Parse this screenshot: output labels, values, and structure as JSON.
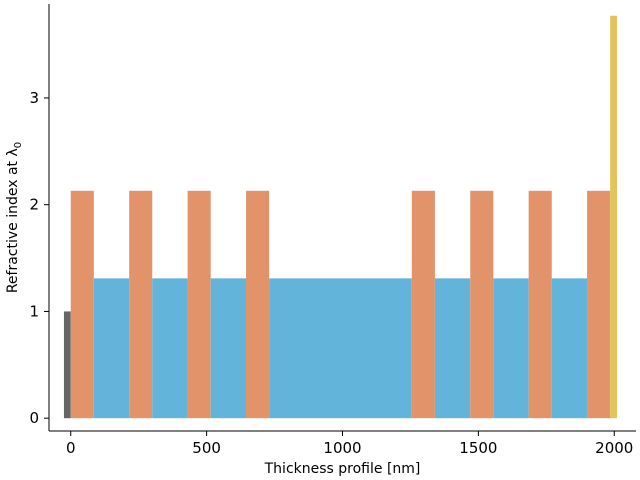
{
  "chart_data": {
    "type": "bar",
    "xlabel": "Thickness profile [nm]",
    "ylabel": "Refractive index at λ",
    "ylabel_subscript": "0",
    "xlim": [
      -80,
      2080
    ],
    "ylim": [
      -0.12,
      3.88
    ],
    "xticks": [
      0,
      500,
      1000,
      1500,
      2000
    ],
    "yticks": [
      0,
      1,
      2,
      3
    ],
    "grid": false,
    "colors": {
      "substrate": "#666666",
      "high_index": "#e2936a",
      "low_index": "#62b4db",
      "ambient": "#e3c45a"
    },
    "layers": [
      {
        "material": "substrate",
        "x_start": -25,
        "x_end": 0,
        "n": 1.0
      },
      {
        "material": "high_index",
        "x_start": 0,
        "x_end": 85,
        "n": 2.13
      },
      {
        "material": "low_index",
        "x_start": 85,
        "x_end": 215,
        "n": 1.31
      },
      {
        "material": "high_index",
        "x_start": 215,
        "x_end": 300,
        "n": 2.13
      },
      {
        "material": "low_index",
        "x_start": 300,
        "x_end": 430,
        "n": 1.31
      },
      {
        "material": "high_index",
        "x_start": 430,
        "x_end": 515,
        "n": 2.13
      },
      {
        "material": "low_index",
        "x_start": 515,
        "x_end": 645,
        "n": 1.31
      },
      {
        "material": "high_index",
        "x_start": 645,
        "x_end": 730,
        "n": 2.13
      },
      {
        "material": "low_index",
        "x_start": 730,
        "x_end": 1255,
        "n": 1.31
      },
      {
        "material": "high_index",
        "x_start": 1255,
        "x_end": 1340,
        "n": 2.13
      },
      {
        "material": "low_index",
        "x_start": 1340,
        "x_end": 1470,
        "n": 1.31
      },
      {
        "material": "high_index",
        "x_start": 1470,
        "x_end": 1555,
        "n": 2.13
      },
      {
        "material": "low_index",
        "x_start": 1555,
        "x_end": 1685,
        "n": 1.31
      },
      {
        "material": "high_index",
        "x_start": 1685,
        "x_end": 1770,
        "n": 2.13
      },
      {
        "material": "low_index",
        "x_start": 1770,
        "x_end": 1900,
        "n": 1.31
      },
      {
        "material": "high_index",
        "x_start": 1900,
        "x_end": 1985,
        "n": 2.13
      },
      {
        "material": "ambient",
        "x_start": 1985,
        "x_end": 2010,
        "n": 3.77
      }
    ]
  }
}
